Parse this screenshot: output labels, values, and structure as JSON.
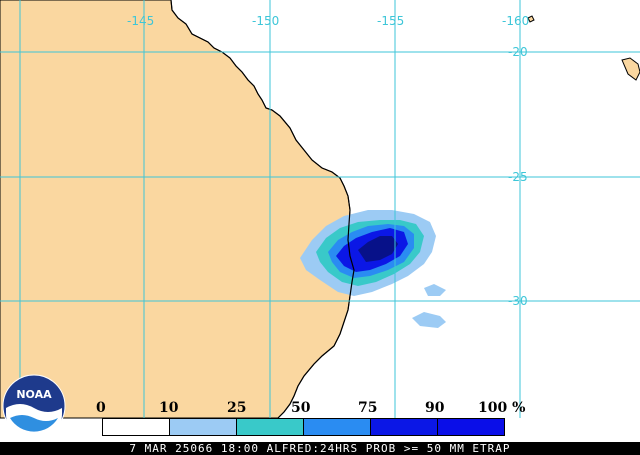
{
  "map": {
    "longitude_labels": [
      "-145",
      "-150",
      "-155",
      "-160"
    ],
    "latitude_labels": [
      "-20",
      "-25",
      "-30"
    ],
    "land_color": "#fad7a0",
    "ocean_color": "#ffffff",
    "grid_color": "#3ec6d8"
  },
  "legend": {
    "labels": [
      "0",
      "10",
      "25",
      "50",
      "75",
      "90",
      "100 %"
    ],
    "colors": [
      "#ffffff",
      "#9ccbf4",
      "#39c9c9",
      "#2a8cf2",
      "#0b17e6",
      "#0a0ee8",
      "#071189"
    ]
  },
  "status_bar": {
    "text": "7 MAR 25066 18:00 ALFRED:24HRS PROB >= 50 MM ETRAP"
  },
  "logo": {
    "text": "NOAA"
  }
}
